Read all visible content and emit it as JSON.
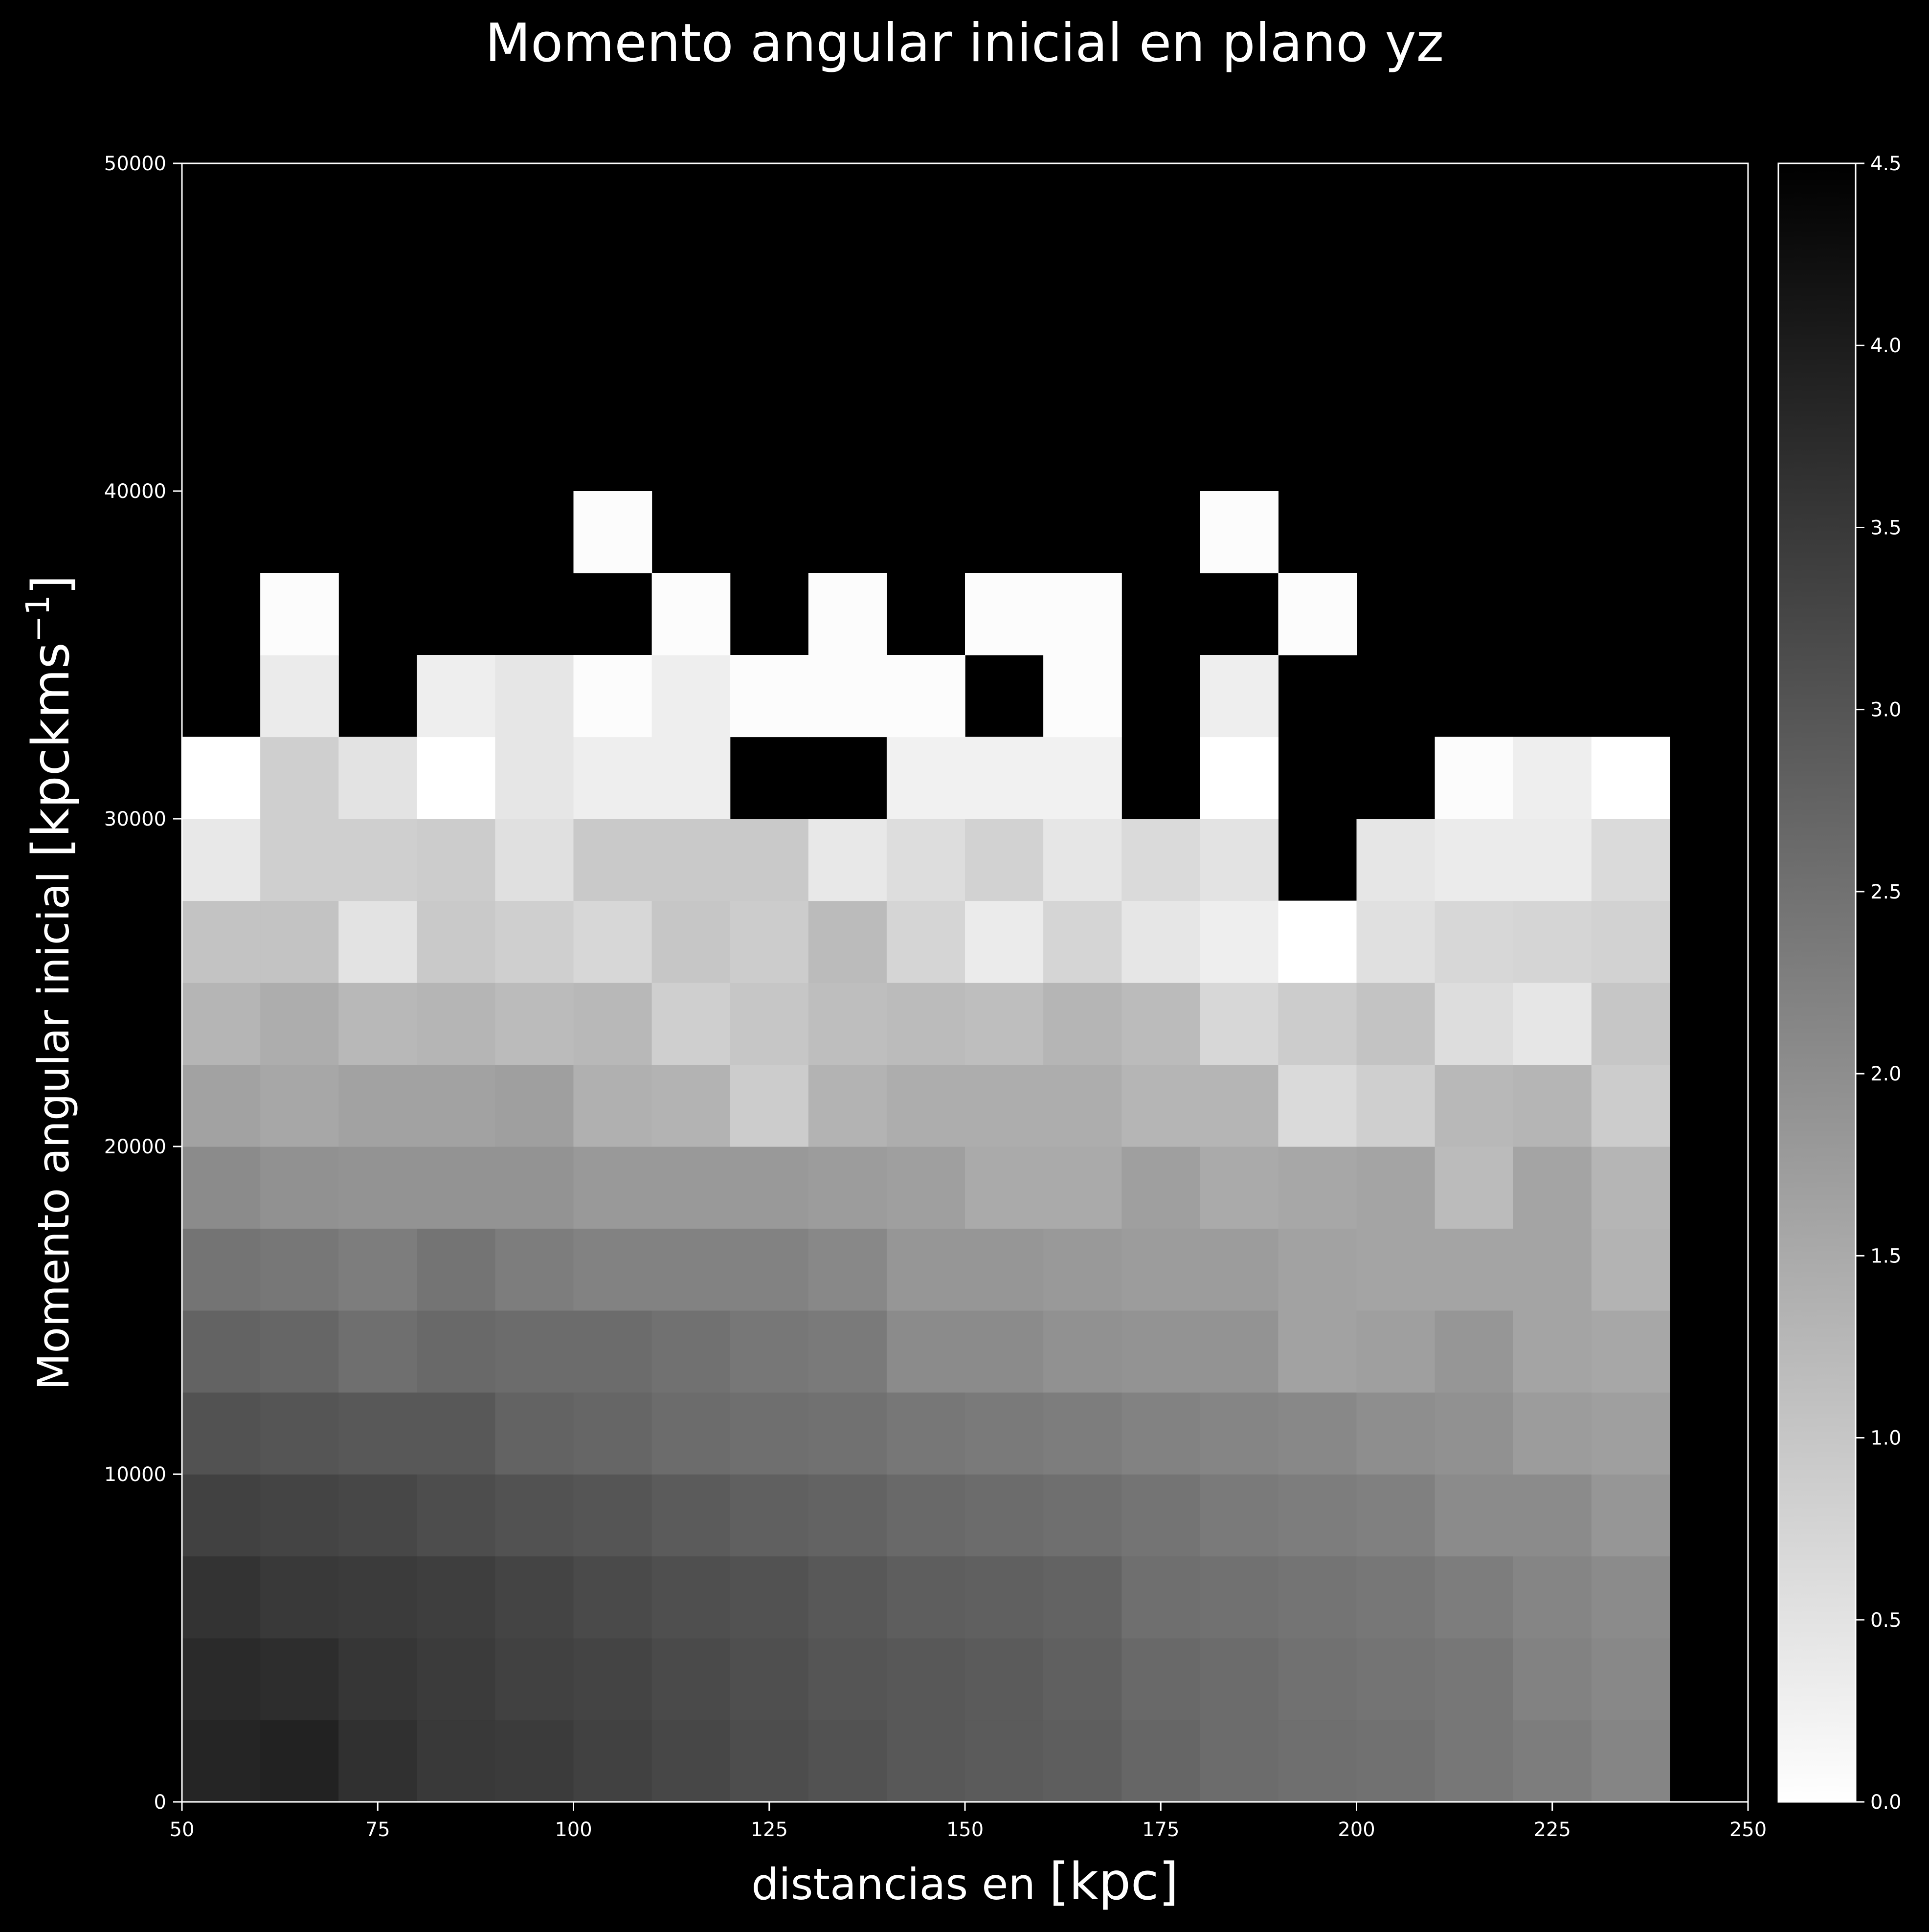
{
  "chart_data": {
    "type": "heatmap",
    "title": "Momento angular inicial en plano yz",
    "xlabel_main": "distancias en ",
    "xlabel_unit": "[kpc]",
    "ylabel_main": "Momento angular inicial ",
    "ylabel_unit": "[kpckms",
    "ylabel_sup": "−1",
    "ylabel_close": "]",
    "xlim": [
      50,
      250
    ],
    "ylim": [
      0,
      50000
    ],
    "x_ticks": [
      "50",
      "75",
      "100",
      "125",
      "150",
      "175",
      "200",
      "225",
      "250"
    ],
    "y_ticks": [
      "0",
      "10000",
      "20000",
      "30000",
      "40000",
      "50000"
    ],
    "colorbar": {
      "colormap": "gray_r",
      "range": [
        0.0,
        4.5
      ],
      "ticks": [
        "0.0",
        "0.5",
        "1.0",
        "1.5",
        "2.0",
        "2.5",
        "3.0",
        "3.5",
        "4.0",
        "4.5"
      ],
      "empty_bin_color": "#000000"
    },
    "x_bin_edges": [
      50,
      60,
      70,
      80,
      90,
      100,
      110,
      120,
      130,
      140,
      150,
      160,
      170,
      180,
      190,
      200,
      210,
      220,
      230,
      240
    ],
    "y_bin_edges": [
      0,
      2500,
      5000,
      7500,
      10000,
      12500,
      15000,
      17500,
      20000,
      22500,
      25000,
      27500,
      30000,
      32500,
      35000,
      37500,
      40000
    ],
    "values_rows_from_bottom": [
      [
        3.85,
        3.9,
        3.65,
        3.5,
        3.45,
        3.35,
        3.25,
        3.15,
        3.05,
        2.95,
        2.9,
        2.85,
        2.7,
        2.6,
        2.55,
        2.5,
        2.4,
        2.3,
        2.15
      ],
      [
        3.75,
        3.7,
        3.55,
        3.45,
        3.35,
        3.3,
        3.2,
        3.1,
        3.0,
        2.95,
        2.9,
        2.8,
        2.65,
        2.6,
        2.5,
        2.45,
        2.4,
        2.2,
        2.1
      ],
      [
        3.6,
        3.5,
        3.45,
        3.4,
        3.3,
        3.2,
        3.1,
        3.05,
        2.95,
        2.85,
        2.8,
        2.75,
        2.55,
        2.5,
        2.45,
        2.4,
        2.3,
        2.15,
        2.05
      ],
      [
        3.35,
        3.3,
        3.25,
        3.15,
        3.05,
        3.0,
        2.9,
        2.8,
        2.75,
        2.65,
        2.6,
        2.55,
        2.45,
        2.35,
        2.3,
        2.25,
        2.05,
        2.05,
        1.85
      ],
      [
        3.05,
        3.0,
        2.95,
        2.95,
        2.75,
        2.7,
        2.6,
        2.55,
        2.5,
        2.4,
        2.35,
        2.3,
        2.2,
        2.15,
        2.1,
        2.0,
        1.95,
        1.75,
        1.7
      ],
      [
        2.75,
        2.7,
        2.55,
        2.65,
        2.6,
        2.6,
        2.5,
        2.4,
        2.35,
        2.05,
        2.05,
        1.95,
        1.9,
        1.9,
        1.65,
        1.7,
        1.85,
        1.6,
        1.55
      ],
      [
        2.45,
        2.4,
        2.3,
        2.45,
        2.3,
        2.2,
        2.2,
        2.2,
        2.1,
        1.85,
        1.85,
        1.8,
        1.75,
        1.75,
        1.65,
        1.6,
        1.6,
        1.6,
        1.35
      ],
      [
        2.05,
        1.95,
        1.9,
        1.9,
        1.9,
        1.8,
        1.8,
        1.8,
        1.75,
        1.7,
        1.5,
        1.5,
        1.7,
        1.5,
        1.55,
        1.6,
        1.2,
        1.6,
        1.3
      ],
      [
        1.65,
        1.55,
        1.65,
        1.65,
        1.7,
        1.4,
        1.35,
        0.9,
        1.35,
        1.45,
        1.45,
        1.45,
        1.3,
        1.3,
        0.65,
        0.85,
        1.25,
        1.3,
        0.9
      ],
      [
        1.3,
        1.45,
        1.25,
        1.3,
        1.2,
        1.25,
        0.85,
        1.0,
        1.15,
        1.2,
        1.15,
        1.3,
        1.2,
        0.7,
        0.9,
        1.05,
        0.6,
        0.45,
        1.0
      ],
      [
        1.05,
        1.05,
        0.5,
        0.95,
        0.85,
        0.7,
        1.0,
        0.9,
        1.2,
        0.75,
        0.35,
        0.75,
        0.45,
        0.3,
        0.0,
        0.55,
        0.7,
        0.75,
        0.8
      ],
      [
        0.4,
        0.85,
        0.85,
        0.9,
        0.55,
        0.95,
        0.95,
        0.95,
        0.4,
        0.6,
        0.8,
        0.45,
        0.65,
        0.5,
        null,
        0.45,
        0.35,
        0.35,
        0.65
      ],
      [
        0.0,
        0.85,
        0.5,
        0.0,
        0.45,
        0.3,
        0.3,
        null,
        null,
        0.25,
        0.25,
        0.25,
        null,
        0.0,
        null,
        null,
        0.05,
        0.3,
        0.0
      ],
      [
        null,
        0.35,
        null,
        0.3,
        0.45,
        0.05,
        0.3,
        0.05,
        0.05,
        0.05,
        null,
        0.05,
        null,
        0.3,
        null,
        null,
        null,
        null,
        null
      ],
      [
        null,
        0.05,
        null,
        null,
        null,
        null,
        0.05,
        null,
        0.05,
        null,
        0.05,
        0.05,
        null,
        null,
        0.05,
        null,
        null,
        null,
        null
      ],
      [
        null,
        null,
        null,
        null,
        null,
        0.05,
        null,
        null,
        null,
        null,
        null,
        null,
        null,
        0.05,
        null,
        null,
        null,
        null,
        null
      ]
    ]
  }
}
